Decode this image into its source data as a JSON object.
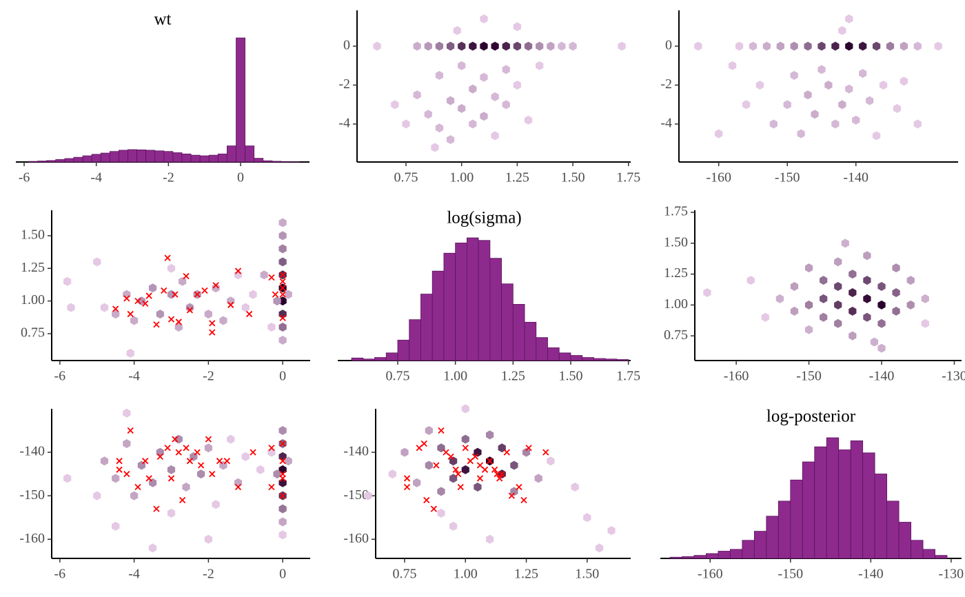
{
  "chart_data": [
    {
      "type": "histogram",
      "title": "wt",
      "color": "#8e2a8e",
      "edge": "#5a145a",
      "bins": [
        -5.875,
        -5.625,
        -5.375,
        -5.125,
        -4.875,
        -4.625,
        -4.375,
        -4.125,
        -3.875,
        -3.625,
        -3.375,
        -3.125,
        -2.875,
        -2.625,
        -2.375,
        -2.125,
        -1.875,
        -1.625,
        -1.375,
        -1.125,
        -0.875,
        -0.625,
        -0.375,
        -0.125,
        0.125,
        0.375,
        0.625,
        0.875,
        1.125,
        1.375,
        1.625
      ],
      "counts": [
        5,
        8,
        12,
        20,
        28,
        38,
        50,
        62,
        72,
        85,
        95,
        100,
        98,
        95,
        90,
        85,
        75,
        65,
        55,
        50,
        55,
        65,
        130,
        1000,
        130,
        30,
        10,
        6,
        4,
        2
      ],
      "xlim": [
        -6.23,
        1.91
      ],
      "xticks": [
        -6,
        -4,
        -2,
        0
      ],
      "ylim": [
        0,
        1000
      ]
    },
    {
      "type": "hexbin",
      "color_low": "#e4c8e4",
      "color_high": "#2a002d",
      "x": [
        0.62,
        0.8,
        0.85,
        0.9,
        0.95,
        1.0,
        1.05,
        1.1,
        1.15,
        1.2,
        1.25,
        1.3,
        1.35,
        1.4,
        1.45,
        1.5,
        1.72,
        0.7,
        0.75,
        0.8,
        0.85,
        0.9,
        0.9,
        0.95,
        0.95,
        1.0,
        1.0,
        1.05,
        1.05,
        1.1,
        1.1,
        1.15,
        1.15,
        1.2,
        1.2,
        1.25,
        1.3,
        1.35,
        0.88,
        1.1,
        0.98,
        1.25
      ],
      "y": [
        0,
        0,
        0,
        0,
        0,
        0,
        0,
        0,
        0,
        0,
        0,
        0,
        0,
        0,
        0,
        0,
        0,
        -3,
        -4,
        -2.5,
        -3.5,
        -1.5,
        -4.2,
        -2.8,
        -4.8,
        -1,
        -3.2,
        -2.2,
        -4,
        -1.6,
        -3.6,
        -2.6,
        -4.6,
        -1.2,
        -3,
        -2,
        -3.8,
        -1,
        -5.2,
        1.4,
        0.8,
        1
      ],
      "counts": [
        1,
        3,
        5,
        8,
        12,
        18,
        22,
        25,
        24,
        20,
        15,
        10,
        6,
        4,
        2,
        2,
        1,
        1,
        1,
        2,
        2,
        2,
        2,
        3,
        2,
        2,
        3,
        3,
        2,
        2,
        3,
        2,
        1,
        2,
        2,
        1,
        1,
        1,
        1,
        1,
        1,
        1
      ],
      "xlim": [
        0.53,
        1.76
      ],
      "xticks": [
        {
          "value": 0.75,
          "label": "0.75"
        },
        {
          "value": 1,
          "label": "1.00"
        },
        {
          "value": 1.25,
          "label": "1.25"
        },
        {
          "value": 1.5,
          "label": "1.50"
        },
        {
          "value": 1.75,
          "label": "1.75"
        }
      ],
      "ylim": [
        -5.95,
        1.84
      ],
      "yticks": [
        -4,
        -2,
        0
      ]
    },
    {
      "type": "hexbin",
      "color_low": "#e4c8e4",
      "color_high": "#2a002d",
      "x": [
        -163,
        -157,
        -155,
        -153,
        -151,
        -149,
        -147,
        -145,
        -143,
        -141,
        -139,
        -137,
        -135,
        -133,
        -131,
        -128,
        -160,
        -156,
        -154,
        -152,
        -150,
        -149,
        -148,
        -147,
        -146,
        -145,
        -144,
        -143,
        -142,
        -141,
        -140,
        -139,
        -138,
        -137,
        -136,
        -134,
        -131,
        -158,
        -141,
        -142,
        -133
      ],
      "y": [
        0,
        0,
        0,
        0,
        0,
        0,
        0,
        0,
        0,
        0,
        0,
        0,
        0,
        0,
        0,
        0,
        -4.5,
        -3,
        -2,
        -4,
        -3,
        -1.5,
        -4.5,
        -2.5,
        -3.5,
        -1.2,
        -2,
        -4,
        -3,
        -2.2,
        -3.8,
        -1.4,
        -2.8,
        -4.6,
        -2,
        -3.2,
        -4,
        -1,
        1.4,
        0.8,
        -1.8
      ],
      "counts": [
        1,
        1,
        2,
        3,
        4,
        6,
        10,
        15,
        20,
        25,
        22,
        15,
        8,
        4,
        2,
        1,
        1,
        1,
        1,
        2,
        2,
        2,
        2,
        3,
        3,
        2,
        3,
        2,
        3,
        2,
        2,
        2,
        2,
        1,
        1,
        1,
        1,
        1,
        1,
        1,
        1
      ],
      "xlim": [
        -165.8,
        -125.1
      ],
      "xticks": [
        -160,
        -150,
        -140
      ],
      "ylim": [
        -5.95,
        1.84
      ],
      "yticks": [
        -4,
        -2,
        0
      ]
    },
    {
      "type": "hexbin",
      "color_low": "#e4c8e4",
      "color_high": "#2a002d",
      "divergence_color": "#ff0000",
      "x": [
        -5.8,
        -5.7,
        -5,
        -4.8,
        -4.5,
        -4.2,
        -4,
        -3.8,
        -3.5,
        -3.3,
        -3,
        -2.8,
        -2.7,
        -2.5,
        -2.3,
        -2,
        -1.8,
        -1.6,
        -1.4,
        -1.2,
        -1,
        -0.8,
        -0.5,
        -0.3,
        0,
        0,
        0,
        0,
        0,
        0,
        0,
        0,
        0,
        0,
        -0.15,
        0.15,
        -4.1,
        -3
      ],
      "y": [
        1.15,
        0.95,
        1.3,
        0.95,
        0.9,
        1.05,
        0.85,
        1,
        1.1,
        0.9,
        1.05,
        0.8,
        1.15,
        0.95,
        1.05,
        0.9,
        1.1,
        0.85,
        1,
        1.2,
        0.95,
        1.05,
        1.2,
        0.8,
        1.6,
        1.5,
        1.4,
        1.3,
        1.2,
        1.1,
        1,
        0.9,
        0.8,
        0.7,
        1,
        1.05,
        0.6,
        1.25
      ],
      "counts": [
        1,
        1,
        1,
        1,
        2,
        2,
        2,
        3,
        3,
        3,
        3,
        2,
        2,
        3,
        3,
        2,
        2,
        2,
        2,
        1,
        1,
        1,
        2,
        1,
        2,
        3,
        4,
        6,
        9,
        12,
        12,
        9,
        5,
        2,
        3,
        2,
        1,
        1
      ],
      "divergences": {
        "x": [
          -4.5,
          -4.2,
          -4.1,
          -3.9,
          -3.7,
          -3.6,
          -3.4,
          -3.2,
          -3.1,
          -3,
          -2.9,
          -2.8,
          -2.6,
          -2.5,
          -2.3,
          -2.1,
          -1.9,
          -1.9,
          -1.8,
          -1.4,
          -1.2,
          -0.9,
          -0.3,
          -0.2,
          0,
          0,
          0,
          0,
          0
        ],
        "y": [
          0.94,
          1.02,
          0.9,
          1,
          0.98,
          1.04,
          0.82,
          1.08,
          1.33,
          0.86,
          1.05,
          0.84,
          1.19,
          0.93,
          1.05,
          1.08,
          0.76,
          0.83,
          1.12,
          0.97,
          1.23,
          0.9,
          1.18,
          1.05,
          1.2,
          1.15,
          1.1,
          1.05,
          0.87
        ]
      },
      "xlim": [
        -6.22,
        0.74
      ],
      "xticks": [
        -6,
        -4,
        -2,
        0
      ],
      "ylim": [
        0.544,
        1.695
      ],
      "yticks": [
        {
          "value": 0.75,
          "label": "0.75"
        },
        {
          "value": 1,
          "label": "1.00"
        },
        {
          "value": 1.25,
          "label": "1.25"
        },
        {
          "value": 1.5,
          "label": "1.50"
        }
      ]
    },
    {
      "type": "histogram",
      "title": "log(sigma)",
      "color": "#8e2a8e",
      "edge": "#5a145a",
      "bins": [
        0.55,
        0.6,
        0.65,
        0.7,
        0.75,
        0.8,
        0.85,
        0.9,
        0.95,
        1,
        1.05,
        1.1,
        1.15,
        1.2,
        1.25,
        1.3,
        1.35,
        1.4,
        1.45,
        1.5,
        1.55,
        1.6,
        1.65,
        1.7,
        1.75
      ],
      "counts": [
        5,
        3,
        6,
        15,
        40,
        80,
        130,
        175,
        210,
        230,
        240,
        235,
        200,
        150,
        110,
        75,
        45,
        25,
        15,
        10,
        6,
        4,
        3,
        2
      ],
      "xlim": [
        0.49,
        1.76
      ],
      "xticks": [
        {
          "value": 0.75,
          "label": "0.75"
        },
        {
          "value": 1,
          "label": "1.00"
        },
        {
          "value": 1.25,
          "label": "1.25"
        },
        {
          "value": 1.5,
          "label": "1.50"
        },
        {
          "value": 1.75,
          "label": "1.75"
        }
      ],
      "ylim": [
        0,
        240
      ]
    },
    {
      "type": "hexbin",
      "color_low": "#e4c8e4",
      "color_high": "#2a002d",
      "x": [
        -164,
        -158,
        -156,
        -154,
        -152,
        -152,
        -150,
        -150,
        -150,
        -148,
        -148,
        -148,
        -146,
        -146,
        -146,
        -146,
        -144,
        -144,
        -144,
        -144,
        -142,
        -142,
        -142,
        -142,
        -140,
        -140,
        -140,
        -140,
        -138,
        -138,
        -138,
        -136,
        -136,
        -134,
        -134,
        -145,
        -141
      ],
      "y": [
        1.1,
        1.2,
        0.9,
        1.05,
        1.15,
        0.95,
        1.3,
        1,
        0.8,
        1.2,
        1.05,
        0.9,
        1.35,
        1.15,
        1,
        0.85,
        1.25,
        1.1,
        0.95,
        0.75,
        1.4,
        1.2,
        1.05,
        0.9,
        1.15,
        1,
        0.85,
        0.65,
        1.3,
        1.1,
        0.95,
        1.2,
        1,
        1.05,
        0.85,
        1.5,
        0.7
      ],
      "counts": [
        1,
        1,
        1,
        2,
        3,
        3,
        3,
        5,
        2,
        6,
        8,
        5,
        3,
        9,
        10,
        5,
        6,
        12,
        11,
        3,
        3,
        9,
        14,
        8,
        8,
        15,
        6,
        2,
        4,
        7,
        6,
        3,
        4,
        2,
        1,
        2,
        2
      ],
      "xlim": [
        -165.7,
        -129
      ],
      "xticks": [
        -160,
        -150,
        -140,
        -130
      ],
      "ylim": [
        0.55,
        1.767
      ],
      "yticks": [
        {
          "value": 0.75,
          "label": "0.75"
        },
        {
          "value": 1,
          "label": "1.00"
        },
        {
          "value": 1.25,
          "label": "1.25"
        },
        {
          "value": 1.5,
          "label": "1.50"
        },
        {
          "value": 1.75,
          "label": "1.75"
        }
      ]
    },
    {
      "type": "hexbin",
      "color_low": "#e4c8e4",
      "color_high": "#2a002d",
      "divergence_color": "#ff0000",
      "x": [
        -5.8,
        -5,
        -4.8,
        -4.5,
        -4.2,
        -4,
        -3.8,
        -3.5,
        -3.3,
        -3,
        -2.8,
        -2.6,
        -2.4,
        -2.2,
        -2,
        -1.8,
        -1.6,
        -1.4,
        -1.2,
        -1,
        -0.6,
        -0.3,
        -3.5,
        -4.5,
        -2,
        -4.2,
        -3,
        0,
        0,
        0,
        0,
        0,
        0,
        0,
        0,
        0,
        -0.15,
        0.15
      ],
      "y": [
        -146,
        -150,
        -142,
        -146,
        -138,
        -150,
        -143,
        -147,
        -140,
        -144,
        -137,
        -148,
        -141,
        -145,
        -139,
        -152,
        -143,
        -137,
        -147,
        -141,
        -144,
        -140,
        -162,
        -157,
        -160,
        -131,
        -154,
        -135,
        -138,
        -141,
        -144,
        -147,
        -150,
        -153,
        -156,
        -159,
        -145,
        -142
      ],
      "counts": [
        1,
        1,
        2,
        2,
        2,
        2,
        3,
        3,
        3,
        3,
        3,
        2,
        3,
        3,
        2,
        1,
        2,
        1,
        2,
        1,
        1,
        1,
        1,
        1,
        1,
        1,
        1,
        3,
        5,
        8,
        10,
        9,
        7,
        4,
        2,
        1,
        3,
        2
      ],
      "divergences": {
        "x": [
          -4.1,
          -4.4,
          -4.4,
          -4.2,
          -3.9,
          -3.7,
          -3.6,
          -3.4,
          -3.3,
          -3.1,
          -3,
          -2.9,
          -2.8,
          -2.7,
          -2.6,
          -2.5,
          -2.3,
          -2.2,
          -2,
          -1.9,
          -1.7,
          -1.5,
          -1.2,
          -0.8,
          -0.3,
          -0.3,
          0,
          0,
          0,
          0,
          0
        ],
        "y": [
          -135,
          -142,
          -144,
          -145,
          -148,
          -142,
          -146,
          -153,
          -141,
          -139,
          -146,
          -137,
          -140,
          -151,
          -139,
          -142,
          -140,
          -143,
          -137,
          -145,
          -142,
          -142,
          -148,
          -140,
          -139,
          -148,
          -138,
          -142,
          -145,
          -150,
          -146
        ]
      },
      "xlim": [
        -6.22,
        0.74
      ],
      "xticks": [
        -6,
        -4,
        -2,
        0
      ],
      "ylim": [
        -164.4,
        -130
      ],
      "yticks": [
        -160,
        -150,
        -140
      ]
    },
    {
      "type": "hexbin",
      "color_low": "#e4c8e4",
      "color_high": "#2a002d",
      "divergence_color": "#ff0000",
      "x": [
        0.6,
        0.7,
        0.75,
        0.8,
        0.85,
        0.85,
        0.9,
        0.9,
        0.95,
        0.95,
        1,
        1,
        1.05,
        1.05,
        1.1,
        1.1,
        1.15,
        1.15,
        1.2,
        1.2,
        1.25,
        1.3,
        1.35,
        1.45,
        1.5,
        1.6,
        1.55,
        0.95,
        1.1,
        0.9,
        1
      ],
      "y": [
        -150,
        -145,
        -140,
        -147,
        -135,
        -143,
        -139,
        -149,
        -142,
        -146,
        -137,
        -144,
        -140,
        -148,
        -142,
        -136,
        -145,
        -139,
        -143,
        -149,
        -140,
        -146,
        -142,
        -148,
        -155,
        -158,
        -162,
        -157,
        -160,
        -154,
        -130
      ],
      "counts": [
        1,
        1,
        2,
        2,
        2,
        3,
        4,
        3,
        6,
        5,
        4,
        8,
        8,
        5,
        9,
        3,
        7,
        6,
        5,
        3,
        3,
        2,
        1,
        1,
        1,
        1,
        1,
        1,
        1,
        1,
        1
      ],
      "divergences": {
        "x": [
          0.76,
          0.76,
          0.81,
          0.83,
          0.84,
          0.87,
          0.88,
          0.9,
          0.92,
          0.94,
          0.96,
          0.98,
          1,
          1.02,
          1.04,
          1.06,
          1.08,
          1.1,
          1.12,
          1.13,
          1.14,
          1.15,
          1.17,
          1.19,
          1.22,
          1.24,
          1.26,
          1.33,
          0.97,
          1.06
        ],
        "y": [
          -146,
          -148,
          -139,
          -138,
          -151,
          -153,
          -143,
          -135,
          -140,
          -141,
          -144,
          -148,
          -139,
          -142,
          -141,
          -143,
          -144,
          -142,
          -144,
          -145,
          -146,
          -145,
          -140,
          -150,
          -148,
          -151,
          -139,
          -140,
          -145,
          -146
        ]
      },
      "xlim": [
        0.631,
        1.679
      ],
      "xticks": [
        {
          "value": 0.75,
          "label": "0.75"
        },
        {
          "value": 1,
          "label": "1.00"
        },
        {
          "value": 1.25,
          "label": "1.25"
        },
        {
          "value": 1.5,
          "label": "1.50"
        }
      ],
      "ylim": [
        -164.4,
        -130
      ],
      "yticks": [
        -160,
        -150,
        -140
      ]
    },
    {
      "type": "histogram",
      "title": "log-posterior",
      "color": "#8e2a8e",
      "edge": "#5a145a",
      "bins": [
        -165,
        -163.5,
        -162,
        -160.5,
        -159,
        -157.5,
        -156,
        -154.5,
        -153,
        -151.5,
        -150,
        -148.5,
        -147,
        -145.5,
        -144,
        -142.5,
        -141,
        -139.5,
        -138,
        -136.5,
        -135,
        -133.5,
        -132,
        -130.5
      ],
      "counts": [
        2,
        3,
        5,
        8,
        12,
        15,
        30,
        45,
        70,
        95,
        130,
        160,
        185,
        200,
        180,
        195,
        175,
        140,
        95,
        60,
        30,
        15,
        5
      ],
      "xlim": [
        -166.2,
        -128.7
      ],
      "xticks": [
        -160,
        -150,
        -140,
        -130
      ],
      "ylim": [
        0,
        200
      ]
    }
  ]
}
